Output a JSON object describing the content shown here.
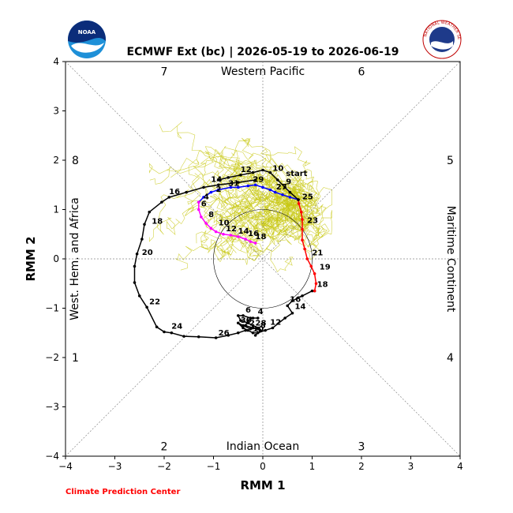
{
  "header": {
    "title": "ECMWF Ext (bc) | 2026-05-19 to 2026-06-19",
    "credit": "Climate Prediction Center",
    "noaa_logo_text": "NOAA",
    "nws_logo_text": "NATIONAL WEATHER SERVICE"
  },
  "colors": {
    "observed": "#000000",
    "forecast_week1": "#ff0000",
    "forecast_week2": "#0000ff",
    "forecast_week3": "#ff00ff",
    "ensemble_members": "#c8c814",
    "credit": "#ff0000"
  },
  "chart_data": {
    "type": "line",
    "title": "ECMWF Ext (bc) | 2026-05-19 to 2026-06-19",
    "xlabel": "RMM 1",
    "ylabel": "RMM 2",
    "xlim": [
      -4,
      4
    ],
    "ylim": [
      -4,
      4
    ],
    "xticks": [
      "−4",
      "−3",
      "−2",
      "−1",
      "0",
      "1",
      "2",
      "3",
      "4"
    ],
    "yticks": [
      "−4",
      "−3",
      "−2",
      "−1",
      "0",
      "1",
      "2",
      "3",
      "4"
    ],
    "unit_circle_radius": 1,
    "region_labels": {
      "top": "Western Pacific",
      "bottom": "Indian Ocean",
      "left": "West. Hem. and Africa",
      "right": "Maritime Continent"
    },
    "phase_labels": [
      {
        "text": "7",
        "x": -2.0,
        "y": 3.8
      },
      {
        "text": "6",
        "x": 2.0,
        "y": 3.8
      },
      {
        "text": "8",
        "x": -3.8,
        "y": 2.0
      },
      {
        "text": "5",
        "x": 3.8,
        "y": 2.0
      },
      {
        "text": "1",
        "x": -3.8,
        "y": -2.0
      },
      {
        "text": "4",
        "x": 3.8,
        "y": -2.0
      },
      {
        "text": "2",
        "x": -2.0,
        "y": -3.8
      },
      {
        "text": "3",
        "x": 2.0,
        "y": -3.8
      }
    ],
    "series": [
      {
        "name": "observed",
        "color": "#000000",
        "points": [
          [
            -0.15,
            -1.55
          ],
          [
            -0.05,
            -1.45
          ],
          [
            -0.2,
            -1.4
          ],
          [
            -0.35,
            -1.35
          ],
          [
            -0.3,
            -1.25
          ],
          [
            -0.2,
            -1.2
          ],
          [
            -0.1,
            -1.2
          ],
          [
            -0.25,
            -1.2
          ],
          [
            -0.4,
            -1.15
          ],
          [
            -0.5,
            -1.15
          ],
          [
            -0.45,
            -1.25
          ],
          [
            -0.3,
            -1.3
          ],
          [
            -0.2,
            -1.35
          ],
          [
            -0.1,
            -1.4
          ],
          [
            -0.25,
            -1.42
          ],
          [
            -0.4,
            -1.35
          ],
          [
            -0.5,
            -1.3
          ],
          [
            -0.4,
            -1.4
          ],
          [
            -0.3,
            -1.45
          ],
          [
            -0.2,
            -1.5
          ],
          [
            -0.1,
            -1.5
          ],
          [
            0.05,
            -1.45
          ],
          [
            0.2,
            -1.4
          ],
          [
            0.45,
            -1.2
          ],
          [
            0.6,
            -1.1
          ],
          [
            0.5,
            -0.95
          ],
          [
            0.6,
            -0.85
          ],
          [
            0.8,
            -0.75
          ],
          [
            1.0,
            -0.65
          ],
          [
            1.05,
            -0.65
          ]
        ],
        "labels": [
          {
            "text": "4",
            "x": -0.15,
            "y": -1.15
          },
          {
            "text": "6",
            "x": -0.4,
            "y": -1.12
          },
          {
            "text": "30",
            "x": -0.5,
            "y": -1.33
          },
          {
            "text": "2",
            "x": -0.32,
            "y": -1.38
          },
          {
            "text": "28",
            "x": -0.2,
            "y": -1.38
          },
          {
            "text": "8",
            "x": -0.1,
            "y": -1.43
          },
          {
            "text": "10",
            "x": -0.25,
            "y": -1.5
          },
          {
            "text": "12",
            "x": 0.1,
            "y": -1.37
          },
          {
            "text": "14",
            "x": 0.6,
            "y": -1.05
          },
          {
            "text": "16",
            "x": 0.5,
            "y": -0.9
          },
          {
            "text": "18",
            "x": 1.05,
            "y": -0.6
          }
        ]
      },
      {
        "name": "forecast",
        "color": "#000000",
        "points": [
          [
            -0.15,
            1.6
          ],
          [
            -0.5,
            1.55
          ],
          [
            -0.9,
            1.5
          ],
          [
            -1.2,
            1.45
          ],
          [
            -1.55,
            1.35
          ],
          [
            -1.9,
            1.25
          ],
          [
            -2.05,
            1.15
          ],
          [
            -2.3,
            0.95
          ],
          [
            -2.4,
            0.7
          ],
          [
            -2.45,
            0.4
          ],
          [
            -2.55,
            0.1
          ],
          [
            -2.6,
            -0.15
          ],
          [
            -2.6,
            -0.48
          ],
          [
            -2.5,
            -0.75
          ],
          [
            -2.35,
            -0.98
          ],
          [
            -2.15,
            -1.38
          ],
          [
            -2.0,
            -1.48
          ],
          [
            -1.85,
            -1.5
          ],
          [
            -1.6,
            -1.57
          ],
          [
            -1.3,
            -1.58
          ],
          [
            -0.95,
            -1.6
          ],
          [
            -0.7,
            -1.55
          ],
          [
            -0.5,
            -1.5
          ],
          [
            -0.35,
            -1.45
          ]
        ],
        "labels": [
          {
            "text": "14",
            "x": -1.1,
            "y": 1.53
          },
          {
            "text": "16",
            "x": -1.95,
            "y": 1.28
          },
          {
            "text": "18",
            "x": -2.3,
            "y": 0.68
          },
          {
            "text": "20",
            "x": -2.5,
            "y": 0.05
          },
          {
            "text": "22",
            "x": -2.35,
            "y": -0.95
          },
          {
            "text": "24",
            "x": -1.9,
            "y": -1.45
          },
          {
            "text": "26",
            "x": -0.95,
            "y": -1.58
          }
        ]
      },
      {
        "name": "forecast-red",
        "color": "#ff0000",
        "points": [
          [
            1.05,
            -0.65
          ],
          [
            1.08,
            -0.5
          ],
          [
            1.05,
            -0.3
          ],
          [
            0.98,
            -0.15
          ],
          [
            0.9,
            0.0
          ],
          [
            0.85,
            0.2
          ],
          [
            0.8,
            0.38
          ],
          [
            0.8,
            0.6
          ],
          [
            0.8,
            0.8
          ],
          [
            0.78,
            0.95
          ],
          [
            0.73,
            1.12
          ],
          [
            0.72,
            1.2
          ]
        ],
        "labels": [
          {
            "text": "19",
            "x": 1.1,
            "y": -0.25
          },
          {
            "text": "21",
            "x": 0.95,
            "y": 0.04
          },
          {
            "text": "23",
            "x": 0.85,
            "y": 0.7
          },
          {
            "text": "25",
            "x": 0.75,
            "y": 1.18
          }
        ]
      },
      {
        "name": "forecast-blue",
        "color": "#0000ff",
        "points": [
          [
            0.72,
            1.2
          ],
          [
            0.55,
            1.25
          ],
          [
            0.4,
            1.3
          ],
          [
            0.25,
            1.35
          ],
          [
            0.15,
            1.4
          ],
          [
            0.0,
            1.45
          ],
          [
            -0.15,
            1.5
          ],
          [
            -0.3,
            1.48
          ],
          [
            -0.5,
            1.45
          ],
          [
            -0.65,
            1.45
          ],
          [
            -0.9,
            1.4
          ],
          [
            -1.05,
            1.35
          ],
          [
            -1.2,
            1.25
          ],
          [
            -1.3,
            1.15
          ]
        ],
        "labels": [
          {
            "text": "27",
            "x": 0.22,
            "y": 1.38
          },
          {
            "text": "29",
            "x": -0.25,
            "y": 1.53
          },
          {
            "text": "31",
            "x": -0.75,
            "y": 1.45
          },
          {
            "text": "2",
            "x": -1.0,
            "y": 1.33
          }
        ]
      },
      {
        "name": "forecast-magenta",
        "color": "#ff00ff",
        "points": [
          [
            -1.3,
            1.15
          ],
          [
            -1.3,
            1.0
          ],
          [
            -1.25,
            0.85
          ],
          [
            -1.15,
            0.72
          ],
          [
            -1.05,
            0.62
          ],
          [
            -0.95,
            0.55
          ],
          [
            -0.8,
            0.5
          ],
          [
            -0.65,
            0.48
          ],
          [
            -0.5,
            0.45
          ],
          [
            -0.35,
            0.4
          ],
          [
            -0.25,
            0.35
          ],
          [
            -0.15,
            0.32
          ]
        ],
        "labels": [
          {
            "text": "4",
            "x": -1.25,
            "y": 1.18
          },
          {
            "text": "6",
            "x": -1.3,
            "y": 1.03
          },
          {
            "text": "8",
            "x": -1.15,
            "y": 0.82
          },
          {
            "text": "10",
            "x": -0.95,
            "y": 0.65
          },
          {
            "text": "12",
            "x": -0.8,
            "y": 0.53
          },
          {
            "text": "14",
            "x": -0.55,
            "y": 0.48
          },
          {
            "text": "16",
            "x": -0.35,
            "y": 0.43
          },
          {
            "text": "18",
            "x": -0.2,
            "y": 0.37
          }
        ]
      },
      {
        "name": "start-path",
        "color": "#000000",
        "points": [
          [
            0.72,
            1.2
          ],
          [
            0.55,
            1.35
          ],
          [
            0.45,
            1.45
          ],
          [
            0.3,
            1.6
          ],
          [
            0.15,
            1.75
          ],
          [
            0.0,
            1.8
          ],
          [
            -0.2,
            1.75
          ],
          [
            -0.45,
            1.7
          ],
          [
            -0.7,
            1.65
          ],
          [
            -0.9,
            1.6
          ]
        ],
        "labels": [
          {
            "text": "start",
            "x": 0.42,
            "y": 1.65
          },
          {
            "text": "10",
            "x": 0.15,
            "y": 1.75
          },
          {
            "text": "12",
            "x": -0.5,
            "y": 1.73
          },
          {
            "text": "9",
            "x": 0.42,
            "y": 1.48
          }
        ]
      }
    ]
  }
}
